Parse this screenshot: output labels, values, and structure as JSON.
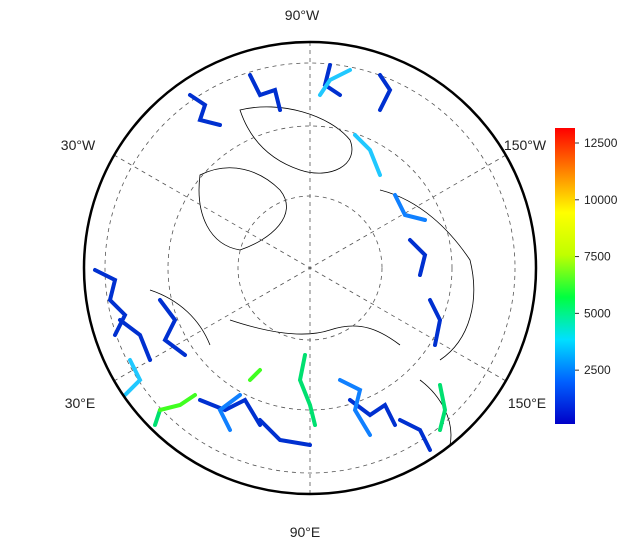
{
  "map": {
    "longitude_labels": {
      "top": "90°W",
      "upper_left": "30°W",
      "upper_right": "150°W",
      "lower_left": "30°E",
      "lower_right": "150°E",
      "bottom": "90°E"
    },
    "colorbar": {
      "range": [
        130,
        13160
      ],
      "ticks": [
        2500,
        5000,
        7500,
        10000,
        12500
      ],
      "colors": [
        "#0000c8",
        "#0060ff",
        "#00e0ff",
        "#00ff40",
        "#c0ff00",
        "#ffff00",
        "#ff8000",
        "#ff0000"
      ]
    }
  }
}
